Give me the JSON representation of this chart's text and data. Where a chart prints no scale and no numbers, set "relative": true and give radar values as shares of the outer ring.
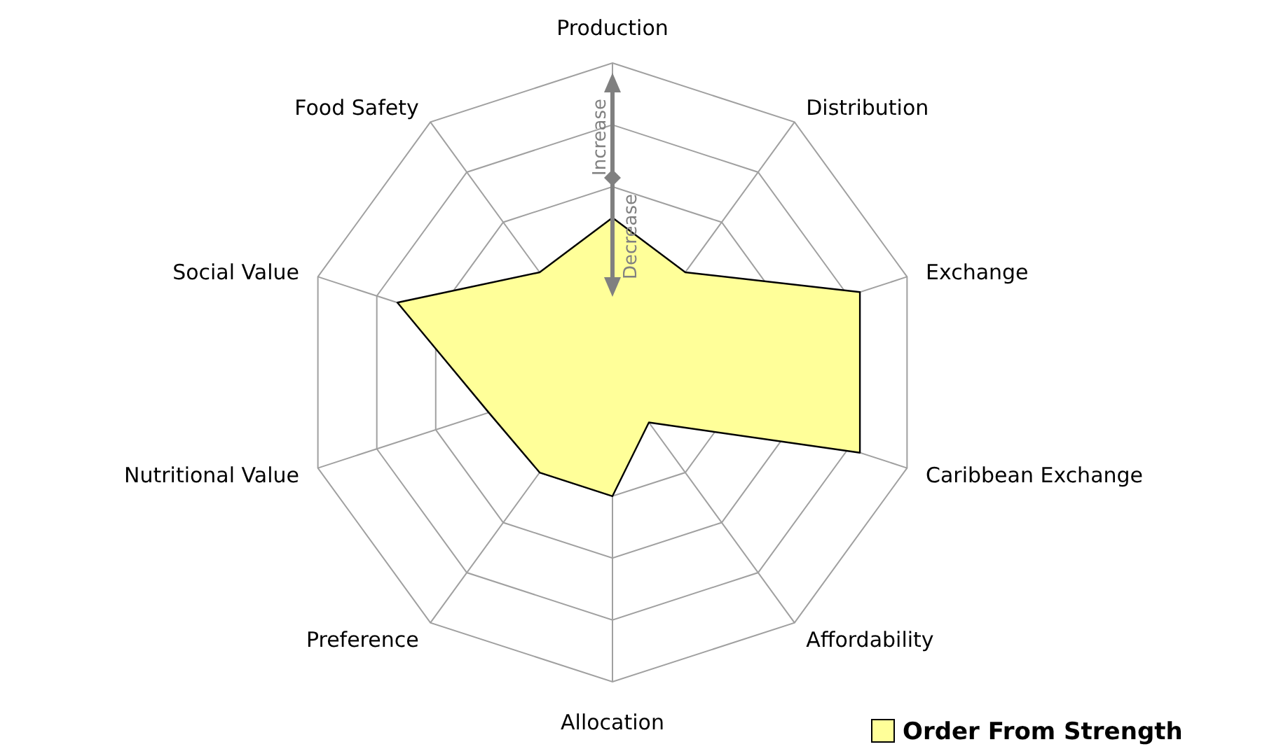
{
  "chart_data": {
    "type": "radar",
    "relative": true,
    "categories": [
      "Production",
      "Distribution",
      "Exchange",
      "Caribbean Exchange",
      "Affordability",
      "Allocation",
      "Preference",
      "Nutritional Value",
      "Social Value",
      "Food Safety"
    ],
    "series": [
      {
        "name": "Order From Strength",
        "color": "#ffff99",
        "values": [
          0.5,
          0.4,
          0.84,
          0.84,
          0.2,
          0.4,
          0.4,
          0.42,
          0.73,
          0.4
        ]
      }
    ],
    "annotations": [
      "Increase",
      "Decrease"
    ],
    "legend": "bottom right"
  }
}
